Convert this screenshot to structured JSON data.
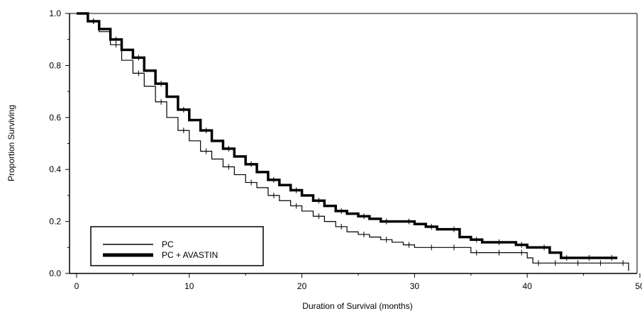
{
  "chart_data": {
    "type": "line",
    "title": "",
    "xlabel": "Duration of Survival (months)",
    "ylabel": "Proportion Surviving",
    "xlim": [
      0,
      50
    ],
    "ylim": [
      0,
      1.0
    ],
    "x_ticks": [
      0,
      10,
      20,
      30,
      40,
      50
    ],
    "x_tick_labels": [
      "0",
      "10",
      "20",
      "30",
      "40",
      "50"
    ],
    "y_ticks": [
      0.0,
      0.2,
      0.4,
      0.6,
      0.8,
      1.0
    ],
    "y_tick_labels": [
      "0.0",
      "0.2",
      "0.4",
      "0.6",
      "0.8",
      "1.0"
    ],
    "grid": false,
    "legend_position": "bottom-left",
    "series": [
      {
        "name": "PC",
        "style": "thin",
        "color": "#000000",
        "x": [
          0,
          1,
          2,
          3,
          4,
          5,
          6,
          7,
          8,
          9,
          10,
          11,
          12,
          13,
          14,
          15,
          16,
          17,
          18,
          19,
          20,
          21,
          22,
          23,
          24,
          25,
          26,
          27,
          28,
          29,
          30,
          31,
          32,
          33,
          34,
          35,
          36,
          37,
          38,
          39,
          40,
          40.5,
          41,
          42,
          43,
          44,
          45,
          46,
          47,
          48,
          49
        ],
        "y": [
          1.0,
          0.97,
          0.93,
          0.88,
          0.82,
          0.77,
          0.72,
          0.66,
          0.6,
          0.55,
          0.51,
          0.47,
          0.44,
          0.41,
          0.38,
          0.35,
          0.33,
          0.3,
          0.28,
          0.26,
          0.24,
          0.22,
          0.2,
          0.18,
          0.16,
          0.15,
          0.14,
          0.13,
          0.12,
          0.11,
          0.1,
          0.1,
          0.1,
          0.1,
          0.1,
          0.08,
          0.08,
          0.08,
          0.08,
          0.08,
          0.06,
          0.04,
          0.04,
          0.04,
          0.04,
          0.04,
          0.04,
          0.04,
          0.04,
          0.04,
          0.01
        ]
      },
      {
        "name": "PC + AVASTIN",
        "style": "thick",
        "color": "#000000",
        "x": [
          0,
          1,
          2,
          3,
          4,
          5,
          6,
          7,
          8,
          9,
          10,
          11,
          12,
          13,
          14,
          15,
          16,
          17,
          18,
          19,
          20,
          21,
          22,
          23,
          24,
          25,
          26,
          27,
          28,
          29,
          30,
          31,
          32,
          33,
          34,
          35,
          36,
          37,
          38,
          39,
          40,
          41,
          42,
          43,
          44,
          45,
          46,
          47,
          48
        ],
        "y": [
          1.0,
          0.97,
          0.94,
          0.9,
          0.86,
          0.83,
          0.78,
          0.73,
          0.68,
          0.63,
          0.59,
          0.55,
          0.51,
          0.48,
          0.45,
          0.42,
          0.39,
          0.36,
          0.34,
          0.32,
          0.3,
          0.28,
          0.26,
          0.24,
          0.23,
          0.22,
          0.21,
          0.2,
          0.2,
          0.2,
          0.19,
          0.18,
          0.17,
          0.17,
          0.14,
          0.13,
          0.12,
          0.12,
          0.12,
          0.11,
          0.1,
          0.1,
          0.08,
          0.06,
          0.06,
          0.06,
          0.06,
          0.06,
          0.06
        ]
      }
    ]
  }
}
